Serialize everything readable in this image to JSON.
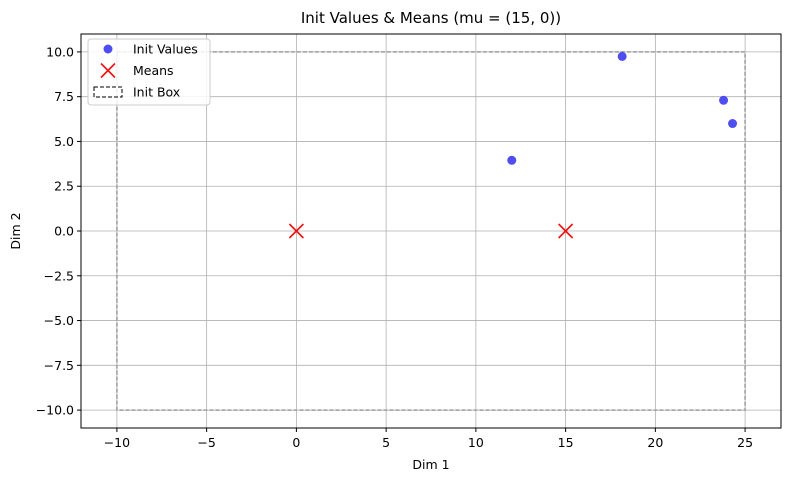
{
  "chart_data": {
    "type": "scatter",
    "title": "Init Values & Means (mu = (15, 0))",
    "xlabel": "Dim 1",
    "ylabel": "Dim 2",
    "xlim": [
      -12,
      27
    ],
    "ylim": [
      -11,
      11
    ],
    "x_ticks": [
      -10,
      -5,
      0,
      5,
      10,
      15,
      20,
      25
    ],
    "x_tick_labels": [
      "−10",
      "−5",
      "0",
      "5",
      "10",
      "15",
      "20",
      "25"
    ],
    "y_ticks": [
      10.0,
      7.5,
      5.0,
      2.5,
      0.0,
      -2.5,
      -5.0,
      -7.5,
      -10.0
    ],
    "y_tick_labels": [
      "10.0",
      "7.5",
      "5.0",
      "2.5",
      "0.0",
      "−2.5",
      "−5.0",
      "−7.5",
      "−10.0"
    ],
    "grid": true,
    "legend_position": "top-left",
    "series": [
      {
        "name": "Init Values",
        "kind": "points",
        "marker": "circle",
        "color": "#3b3bf0",
        "points": [
          [
            12.0,
            3.95
          ],
          [
            18.15,
            9.75
          ],
          [
            23.8,
            7.3
          ],
          [
            24.3,
            6.0
          ]
        ]
      },
      {
        "name": "Means",
        "kind": "points",
        "marker": "x",
        "color": "#ee1111",
        "points": [
          [
            0,
            0
          ],
          [
            15,
            0
          ]
        ]
      },
      {
        "name": "Init Box",
        "kind": "box",
        "color": "#aaaaaa",
        "x_range": [
          -10,
          25
        ],
        "y_range": [
          -10,
          10
        ]
      }
    ]
  }
}
